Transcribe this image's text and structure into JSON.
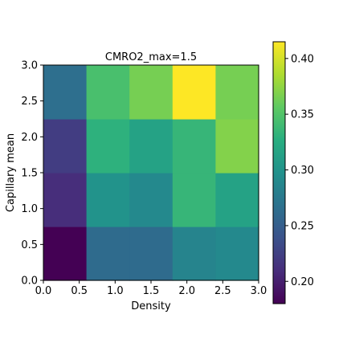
{
  "chart_data": {
    "type": "heatmap",
    "title": "CMRO2_max=1.5",
    "xlabel": "Density",
    "ylabel": "Capillary mean",
    "xlim": [
      0.0,
      3.0
    ],
    "ylim": [
      0.0,
      3.0
    ],
    "x_ticks": [
      "0.0",
      "0.5",
      "1.0",
      "1.5",
      "2.0",
      "2.5",
      "3.0"
    ],
    "y_ticks": [
      "0.0",
      "0.5",
      "1.0",
      "1.5",
      "2.0",
      "2.5",
      "3.0"
    ],
    "rows_bottom_to_top": [
      [
        0.18,
        0.262,
        0.262,
        0.285,
        0.29
      ],
      [
        0.21,
        0.3,
        0.29,
        0.335,
        0.315
      ],
      [
        0.222,
        0.33,
        0.315,
        0.335,
        0.37
      ],
      [
        0.265,
        0.345,
        0.365,
        0.415,
        0.365
      ]
    ],
    "colorbar": {
      "vmin": 0.18,
      "vmax": 0.415,
      "colormap": "viridis",
      "ticks": [
        "0.20",
        "0.25",
        "0.30",
        "0.35",
        "0.40"
      ]
    },
    "grid": false
  }
}
